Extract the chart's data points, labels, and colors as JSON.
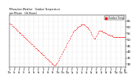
{
  "title1": "Milwaukee Weather   Outdoor Temperature",
  "title2": "per Minute   (24 Hours)",
  "background_color": "#ffffff",
  "plot_bg_color": "#ffffff",
  "line_color": "#ff0000",
  "marker": ".",
  "markersize": 1.0,
  "ylim": [
    28,
    70
  ],
  "yticks": [
    30,
    35,
    40,
    45,
    50,
    55,
    60,
    65
  ],
  "legend_label": "Outdoor Temp",
  "legend_color": "#ff0000",
  "xlim": [
    0,
    1440
  ],
  "temps": [
    63,
    63,
    62,
    62,
    61,
    61,
    60,
    60,
    59,
    59,
    58,
    58,
    57,
    57,
    56,
    56,
    55,
    55,
    54,
    54,
    53,
    53,
    52,
    52,
    51,
    51,
    50,
    50,
    49,
    49,
    48,
    48,
    47,
    47,
    46,
    46,
    45,
    45,
    44,
    44,
    43,
    43,
    42,
    42,
    41,
    41,
    40,
    40,
    39,
    39,
    38,
    38,
    37,
    37,
    36,
    36,
    35,
    35,
    34,
    34,
    33,
    33,
    32,
    32,
    31,
    31,
    30,
    30,
    29,
    29,
    29,
    30,
    30,
    31,
    32,
    33,
    34,
    35,
    36,
    37,
    38,
    39,
    40,
    41,
    42,
    43,
    44,
    45,
    46,
    47,
    48,
    49,
    50,
    51,
    52,
    53,
    54,
    55,
    56,
    57,
    57,
    58,
    58,
    59,
    59,
    60,
    60,
    61,
    61,
    61,
    62,
    62,
    62,
    62,
    62,
    62,
    62,
    61,
    61,
    60,
    60,
    59,
    59,
    58,
    57,
    56,
    55,
    54,
    53,
    52,
    51,
    51,
    51,
    52,
    53,
    54,
    55,
    56,
    57,
    57,
    57,
    57,
    57,
    57,
    56,
    56,
    56,
    55,
    55,
    55,
    55,
    54,
    54,
    54,
    54,
    53,
    53,
    53,
    53,
    53,
    52,
    52,
    52,
    52,
    52,
    52,
    52,
    52,
    52,
    52,
    52,
    52,
    52,
    52,
    52,
    52,
    52,
    52,
    52,
    52
  ],
  "n_minutes": 1440,
  "xtick_count": 25,
  "xtick_labels": [
    "Fr\n12a",
    "Fr\n1a",
    "Fr\n2a",
    "Fr\n3a",
    "Fr\n4a",
    "Fr\n5a",
    "Fr\n6a",
    "Fr\n7a",
    "Fr\n8a",
    "Fr\n9a",
    "Fr\n10a",
    "Fr\n11a",
    "Fr\n12p",
    "Fr\n1p",
    "Fr\n2p",
    "Fr\n3p",
    "Fr\n4p",
    "Fr\n5p",
    "Fr\n6p",
    "Fr\n7p",
    "Fr\n8p",
    "Fr\n9p",
    "Fr\n10p",
    "Fr\n11p",
    "Sa\n12a"
  ]
}
